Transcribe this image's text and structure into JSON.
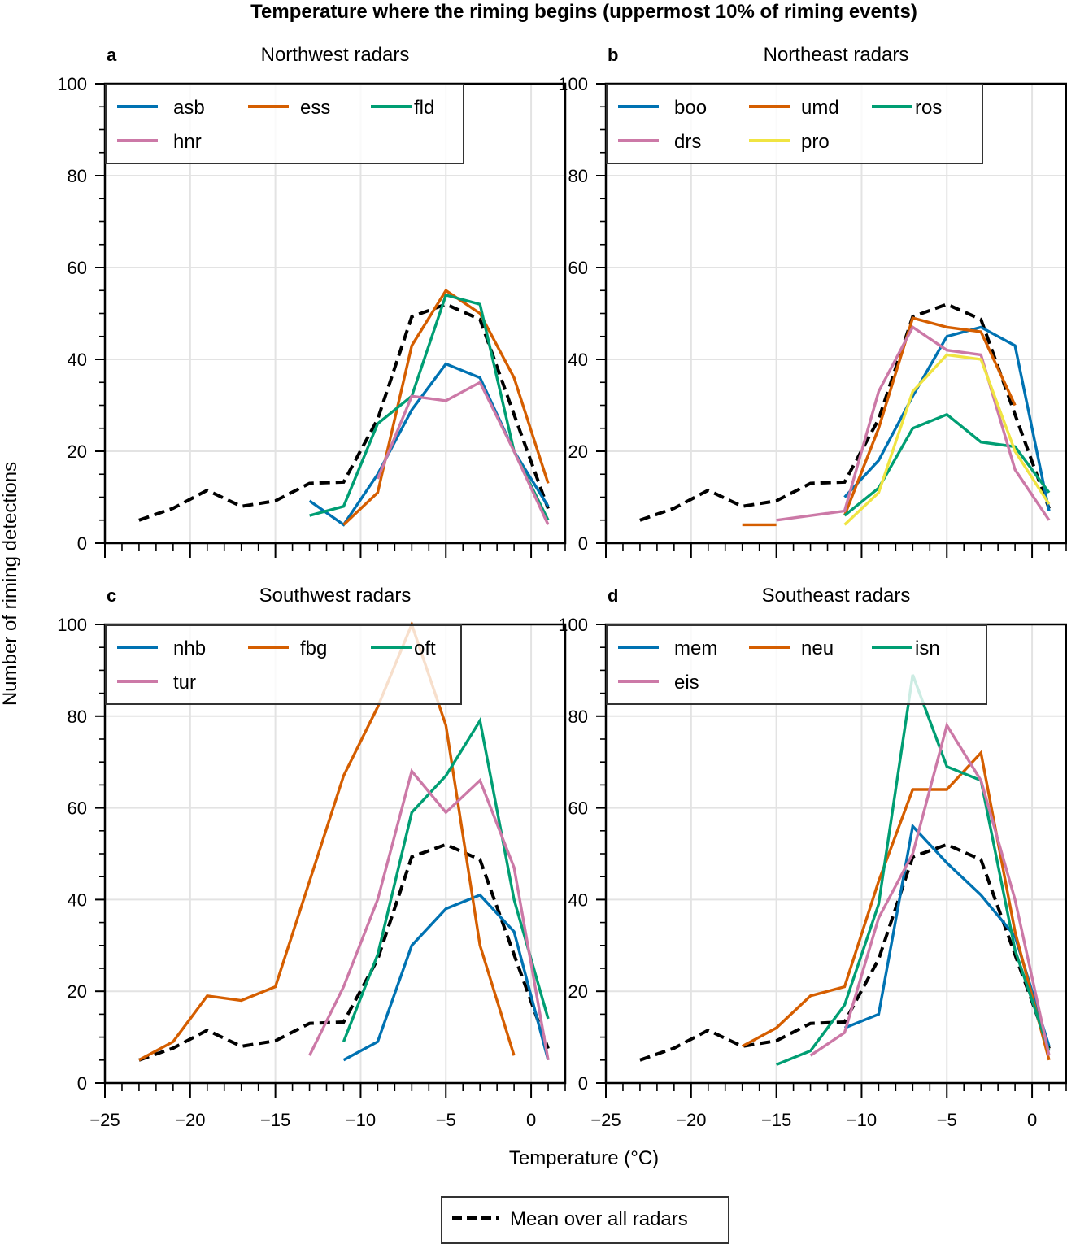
{
  "figure": {
    "title": "Temperature where the riming begins (uppermost 10% of riming events)",
    "xlabel": "Temperature (°C)",
    "ylabel": "Number of riming detections",
    "shared_legend": "Mean over all radars"
  },
  "chart_data": {
    "type": "line",
    "title": "Temperature where the riming begins (uppermost 10% of riming events)",
    "xlabel": "Temperature (°C)",
    "ylabel": "Number of riming detections",
    "xlim": [
      -25,
      2
    ],
    "ylim": [
      0,
      100
    ],
    "xticks": [
      -25,
      -20,
      -15,
      -10,
      -5,
      0
    ],
    "xtick_labels": [
      "−25",
      "−20",
      "−15",
      "−10",
      "−5",
      "0"
    ],
    "yticks": [
      0,
      20,
      40,
      60,
      80,
      100
    ],
    "ytick_labels": [
      "0",
      "20",
      "40",
      "60",
      "80",
      "100"
    ],
    "grid": true,
    "mean": {
      "name": "Mean over all radars",
      "color": "#000000",
      "style": "dashed",
      "x": [
        -23,
        -21,
        -19,
        -17,
        -15,
        -13,
        -11,
        -9,
        -7,
        -5,
        -3,
        -1,
        1
      ],
      "y": [
        5,
        7.6,
        11.5,
        8,
        9.2,
        13,
        13.3,
        27,
        49.3,
        52,
        48.7,
        28,
        7.5
      ]
    },
    "panels": [
      {
        "letter": "a",
        "title": "Northwest radars",
        "legend_position": "top-left",
        "series": [
          {
            "name": "asb",
            "color": "#0072b2",
            "x": [
              -13,
              -11,
              -9,
              -7,
              -5,
              -3,
              -1,
              1
            ],
            "y": [
              9.2,
              4,
              15,
              29,
              39,
              36,
              20,
              8
            ]
          },
          {
            "name": "ess",
            "color": "#d55e00",
            "x": [
              -11,
              -9,
              -7,
              -5,
              -3,
              -1,
              1
            ],
            "y": [
              4,
              11,
              43,
              55,
              50,
              36,
              13
            ]
          },
          {
            "name": "fld",
            "color": "#009e73",
            "x": [
              -13,
              -11,
              -9,
              -7,
              -5,
              -3,
              -1,
              1
            ],
            "y": [
              6,
              8,
              26,
              32,
              54,
              52,
              20,
              5
            ]
          },
          {
            "name": "hnr",
            "color": "#cc79a7",
            "x": [
              -9,
              -7,
              -5,
              -3,
              -1,
              1
            ],
            "y": [
              14,
              32,
              31,
              35,
              20,
              4
            ]
          }
        ]
      },
      {
        "letter": "b",
        "title": "Northeast radars",
        "legend_position": "top-left",
        "series": [
          {
            "name": "boo",
            "color": "#0072b2",
            "x": [
              -11,
              -9,
              -7,
              -5,
              -3,
              -1,
              1
            ],
            "y": [
              10,
              18,
              32,
              45,
              47,
              43,
              7
            ]
          },
          {
            "name": "umd",
            "color": "#d55e00",
            "x": [
              -17,
              -15,
              null,
              -11,
              -9,
              -7,
              -5,
              -3,
              -1
            ],
            "y": [
              4,
              4,
              null,
              6,
              25,
              49,
              47,
              46,
              30
            ]
          },
          {
            "name": "ros",
            "color": "#009e73",
            "x": [
              -11,
              -9,
              -7,
              -5,
              -3,
              -1,
              1
            ],
            "y": [
              6,
              12,
              25,
              28,
              22,
              21,
              11
            ]
          },
          {
            "name": "drs",
            "color": "#cc79a7",
            "x": [
              -15,
              -11,
              -9,
              -7,
              -5,
              -3,
              -1,
              1
            ],
            "y": [
              5,
              7,
              33,
              47,
              42,
              41,
              16,
              5
            ]
          },
          {
            "name": "pro",
            "color": "#f0e442",
            "x": [
              -11,
              -9,
              -7,
              -5,
              -3,
              -1,
              1
            ],
            "y": [
              4,
              11,
              33,
              41,
              40,
              20,
              8.5
            ]
          }
        ]
      },
      {
        "letter": "c",
        "title": "Southwest radars",
        "legend_position": "top-left",
        "series": [
          {
            "name": "nhb",
            "color": "#0072b2",
            "x": [
              -11,
              -9,
              -7,
              -5,
              -3,
              -1,
              1
            ],
            "y": [
              5,
              9,
              30,
              38,
              41,
              33,
              5
            ]
          },
          {
            "name": "fbg",
            "color": "#d55e00",
            "x": [
              -23,
              -21,
              -19,
              -17,
              -15,
              -13,
              -11,
              -9,
              -7,
              -5,
              -3,
              -1
            ],
            "y": [
              5,
              9,
              19,
              18,
              21,
              44,
              67,
              82,
              100,
              78,
              30,
              6
            ]
          },
          {
            "name": "oft",
            "color": "#009e73",
            "x": [
              -11,
              -9,
              -7,
              -5,
              -3,
              -1,
              1
            ],
            "y": [
              9,
              28,
              59,
              67,
              79,
              40,
              14
            ]
          },
          {
            "name": "tur",
            "color": "#cc79a7",
            "x": [
              -13,
              -11,
              -9,
              -7,
              -5,
              -3,
              -1,
              1
            ],
            "y": [
              6,
              21,
              40,
              68,
              59,
              66,
              47,
              5
            ]
          }
        ]
      },
      {
        "letter": "d",
        "title": "Southeast radars",
        "legend_position": "top-left",
        "series": [
          {
            "name": "mem",
            "color": "#0072b2",
            "x": [
              -11,
              -9,
              -7,
              -5,
              -3,
              -1,
              1
            ],
            "y": [
              12,
              15,
              56,
              48,
              41,
              32,
              8
            ]
          },
          {
            "name": "neu",
            "color": "#d55e00",
            "x": [
              -17,
              -15,
              -13,
              -11,
              -9,
              -7,
              -5,
              -3,
              -1,
              1
            ],
            "y": [
              8,
              12,
              19,
              21,
              44,
              64,
              64,
              72,
              33,
              5
            ]
          },
          {
            "name": "isn",
            "color": "#009e73",
            "x": [
              -15,
              -13,
              -11,
              -9,
              -7,
              -5,
              -3,
              -1,
              1
            ],
            "y": [
              4,
              7,
              17,
              39,
              89,
              69,
              66,
              29,
              7
            ]
          },
          {
            "name": "eis",
            "color": "#cc79a7",
            "x": [
              -13,
              -11,
              -9,
              -7,
              -5,
              -3,
              -1,
              1
            ],
            "y": [
              6,
              11,
              36,
              50,
              78,
              66,
              40,
              6
            ]
          }
        ]
      }
    ]
  }
}
